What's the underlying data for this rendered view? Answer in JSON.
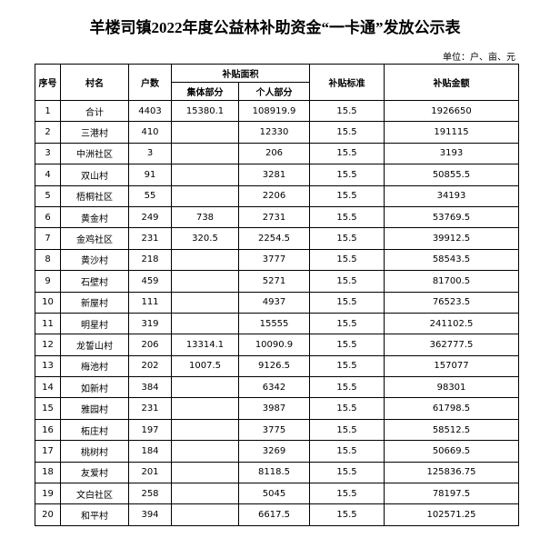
{
  "header": {
    "title": "羊楼司镇2022年度公益林补助资金“一卡通”发放公示表",
    "unit": "单位：户、亩、元"
  },
  "table": {
    "header": [
      "序号",
      "村名",
      "户数",
      "补贴面积",
      "补贴标准",
      "补贴金额"
    ],
    "subheader": [
      "集体部分",
      "个人部分"
    ],
    "rows": [
      [
        "1",
        "合计",
        "4403",
        "15380.1",
        "108919.9",
        "15.5",
        "1926650"
      ],
      [
        "2",
        "三港村",
        "410",
        null,
        "12330",
        "15.5",
        "191115"
      ],
      [
        "3",
        "中洲社区",
        "3",
        null,
        "206",
        "15.5",
        "3193"
      ],
      [
        "4",
        "双山村",
        "91",
        null,
        "3281",
        "15.5",
        "50855.5"
      ],
      [
        "5",
        "梧桐社区",
        "55",
        null,
        "2206",
        "15.5",
        "34193"
      ],
      [
        "6",
        "黄金村",
        "249",
        "738",
        "2731",
        "15.5",
        "53769.5"
      ],
      [
        "7",
        "金鸡社区",
        "231",
        "320.5",
        "2254.5",
        "15.5",
        "39912.5"
      ],
      [
        "8",
        "黄沙村",
        "218",
        null,
        "3777",
        "15.5",
        "58543.5"
      ],
      [
        "9",
        "石壁村",
        "459",
        null,
        "5271",
        "15.5",
        "81700.5"
      ],
      [
        "10",
        "新屋村",
        "111",
        null,
        "4937",
        "15.5",
        "76523.5"
      ],
      [
        "11",
        "明星村",
        "319",
        null,
        "15555",
        "15.5",
        "241102.5"
      ],
      [
        "12",
        "龙誓山村",
        "206",
        "13314.1",
        "10090.9",
        "15.5",
        "362777.5"
      ],
      [
        "13",
        "梅池村",
        "202",
        "1007.5",
        "9126.5",
        "15.5",
        "157077"
      ],
      [
        "14",
        "如新村",
        "384",
        null,
        "6342",
        "15.5",
        "98301"
      ],
      [
        "15",
        "雅园村",
        "231",
        null,
        "3987",
        "15.5",
        "61798.5"
      ],
      [
        "16",
        "柘庄村",
        "197",
        null,
        "3775",
        "15.5",
        "58512.5"
      ],
      [
        "17",
        "桃树村",
        "184",
        null,
        "3269",
        "15.5",
        "50669.5"
      ],
      [
        "18",
        "友爱村",
        "201",
        null,
        "8118.5",
        "15.5",
        "125836.75"
      ],
      [
        "19",
        "文白社区",
        "258",
        null,
        "5045",
        "15.5",
        "78197.5"
      ],
      [
        "20",
        "和平村",
        "394",
        null,
        "6617.5",
        "15.5",
        "102571.25"
      ]
    ]
  }
}
